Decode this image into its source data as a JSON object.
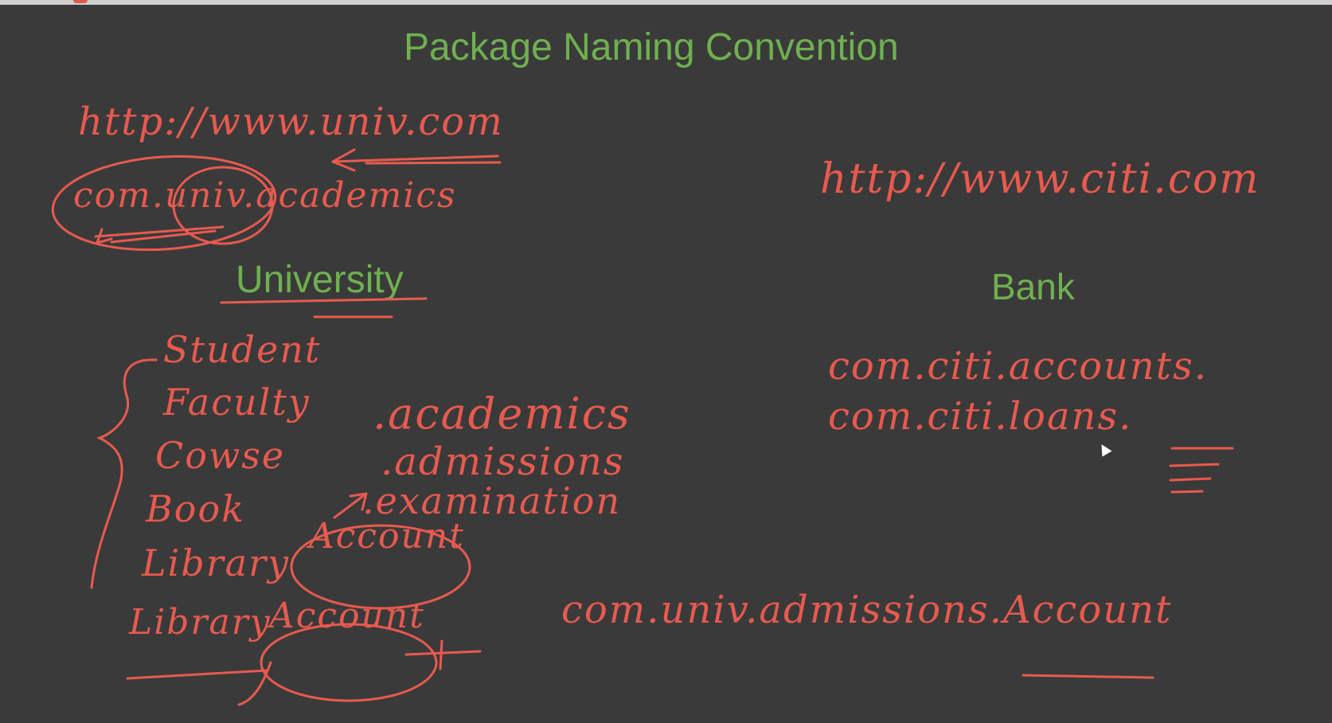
{
  "slide": {
    "title": "Package Naming Convention",
    "university_heading": "University",
    "bank_heading": "Bank"
  },
  "handwriting": {
    "univ_url": "http://www.univ.com",
    "univ_package": "com.univ.academics",
    "class_list": [
      "Student",
      "Faculty",
      "Cowse",
      "Book",
      "Library"
    ],
    "struck_word": "Library",
    "account_bottom": "Account",
    "sub_packages": [
      ".academics",
      ".admissions",
      ".examination"
    ],
    "account_circled": "Account",
    "citi_url": "http://www.citi.com",
    "citi_packages": [
      "com.citi.accounts.",
      "com.citi.loans."
    ],
    "full_package": "com.univ.admissions.Account"
  },
  "colors": {
    "background": "#3a3a3a",
    "heading": "#6fb04f",
    "ink": "#e85a4f"
  }
}
